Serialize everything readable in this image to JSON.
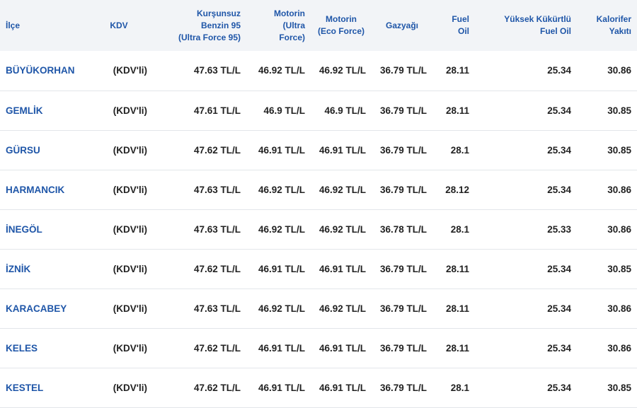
{
  "headers": [
    [
      "İlçe"
    ],
    [
      "KDV"
    ],
    [
      "Kurşunsuz",
      "Benzin 95",
      "(Ultra Force 95)"
    ],
    [
      "Motorin",
      "(Ultra",
      "Force)"
    ],
    [
      "Motorin",
      "(Eco Force)"
    ],
    [
      "Gazyağı"
    ],
    [
      "Fuel",
      "Oil"
    ],
    [
      "Yüksek Kükürtlü",
      "Fuel Oil"
    ],
    [
      "Kalorifer",
      "Yakıtı"
    ]
  ],
  "rows": [
    [
      "BÜYÜKORHAN",
      "(KDV'li)",
      "47.63 TL/L",
      "46.92 TL/L",
      "46.92 TL/L",
      "36.79 TL/L",
      "28.11",
      "25.34",
      "30.86"
    ],
    [
      "GEMLİK",
      "(KDV'li)",
      "47.61 TL/L",
      "46.9 TL/L",
      "46.9 TL/L",
      "36.79 TL/L",
      "28.11",
      "25.34",
      "30.85"
    ],
    [
      "GÜRSU",
      "(KDV'li)",
      "47.62 TL/L",
      "46.91 TL/L",
      "46.91 TL/L",
      "36.79 TL/L",
      "28.1",
      "25.34",
      "30.85"
    ],
    [
      "HARMANCIK",
      "(KDV'li)",
      "47.63 TL/L",
      "46.92 TL/L",
      "46.92 TL/L",
      "36.79 TL/L",
      "28.12",
      "25.34",
      "30.86"
    ],
    [
      "İNEGÖL",
      "(KDV'li)",
      "47.63 TL/L",
      "46.92 TL/L",
      "46.92 TL/L",
      "36.78 TL/L",
      "28.1",
      "25.33",
      "30.86"
    ],
    [
      "İZNİK",
      "(KDV'li)",
      "47.62 TL/L",
      "46.91 TL/L",
      "46.91 TL/L",
      "36.79 TL/L",
      "28.11",
      "25.34",
      "30.85"
    ],
    [
      "KARACABEY",
      "(KDV'li)",
      "47.63 TL/L",
      "46.92 TL/L",
      "46.92 TL/L",
      "36.79 TL/L",
      "28.11",
      "25.34",
      "30.86"
    ],
    [
      "KELES",
      "(KDV'li)",
      "47.62 TL/L",
      "46.91 TL/L",
      "46.91 TL/L",
      "36.79 TL/L",
      "28.11",
      "25.34",
      "30.86"
    ],
    [
      "KESTEL",
      "(KDV'li)",
      "47.62 TL/L",
      "46.91 TL/L",
      "46.91 TL/L",
      "36.79 TL/L",
      "28.1",
      "25.34",
      "30.85"
    ]
  ],
  "colors": {
    "header_text": "#1f56a8",
    "district_text": "#1f56a8",
    "header_bg": "#f2f4f7",
    "cell_text": "#222222"
  }
}
